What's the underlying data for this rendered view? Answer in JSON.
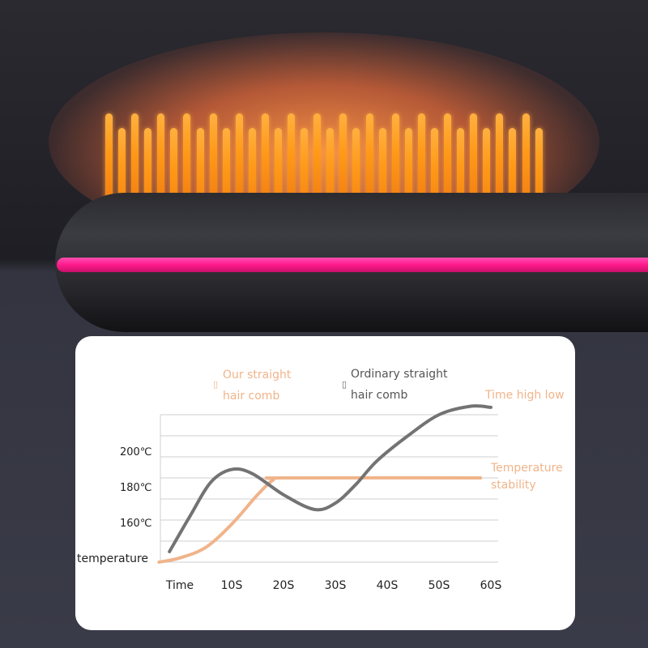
{
  "chart_data": {
    "type": "line",
    "title": "",
    "xlabel": "Time",
    "ylabel": "temperature",
    "x_ticks": [
      "Time",
      "10S",
      "20S",
      "30S",
      "40S",
      "50S",
      "60S"
    ],
    "x_tick_values": [
      0,
      10,
      20,
      30,
      40,
      50,
      60
    ],
    "y_ticks": [
      "160℃",
      "180℃",
      "200℃"
    ],
    "y_tick_values": [
      160,
      180,
      200
    ],
    "xlim": [
      -4,
      62
    ],
    "ylim": [
      140,
      216
    ],
    "gridlines": [
      140,
      150,
      160,
      170,
      180,
      190,
      200,
      210
    ],
    "grid": true,
    "legend_position": "top",
    "series": [
      {
        "name": "Our straight hair comb",
        "color": "#f0b48a",
        "x": [
          -4,
          0,
          5,
          10,
          15,
          18,
          20,
          58
        ],
        "y": [
          140,
          142,
          147,
          158,
          172,
          179,
          180,
          180
        ]
      },
      {
        "name": "Ordinary straight hair comb",
        "color": "#737373",
        "x": [
          -2,
          2,
          6,
          10,
          14,
          20,
          26,
          30,
          34,
          38,
          44,
          50,
          56,
          60
        ],
        "y": [
          145,
          162,
          178,
          184,
          182,
          172,
          165,
          168,
          177,
          188,
          200,
          210,
          214,
          213.5
        ]
      }
    ],
    "legend": {
      "our_line1": "Our straight",
      "our_line2": "hair comb",
      "ordinary_line1": "Ordinary straight",
      "ordinary_line2": "hair comb"
    },
    "annotations": {
      "time_high_low": "Time high low",
      "temperature_line1": "Temperature",
      "temperature_line2": "stability"
    }
  },
  "colors": {
    "accent_pink": "#ff1a8c",
    "bristle_orange": "#ff9a18"
  }
}
